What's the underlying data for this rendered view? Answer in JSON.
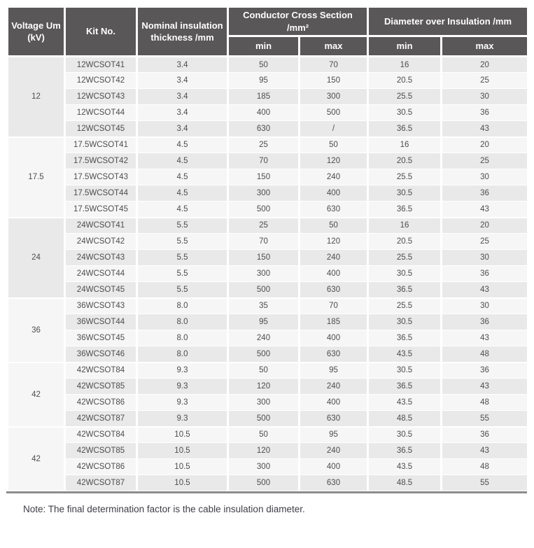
{
  "colors": {
    "header_bg": "#595757",
    "header_text": "#ffffff",
    "row_odd": "#e9e9ea",
    "row_even": "#f6f6f7",
    "voltage_cell_bg": "#ececed",
    "body_text": "#4e4d4d",
    "bottom_rule": "#8c8c8c",
    "note_text": "#3e3d46"
  },
  "table": {
    "headers": {
      "voltage": "Voltage Um (kV)",
      "kit_no": "Kit No.",
      "thickness": "Nominal insulation thickness /mm",
      "conductor_cross_section": "Conductor Cross Section /mm²",
      "diameter_over_insulation": "Diameter over Insulation /mm",
      "min": "min",
      "max": "max"
    },
    "groups": [
      {
        "voltage": "12",
        "rows": [
          {
            "kit_no": "12WCSOT41",
            "thickness": "3.4",
            "ccs_min": "50",
            "ccs_max": "70",
            "dia_min": "16",
            "dia_max": "20"
          },
          {
            "kit_no": "12WCSOT42",
            "thickness": "3.4",
            "ccs_min": "95",
            "ccs_max": "150",
            "dia_min": "20.5",
            "dia_max": "25"
          },
          {
            "kit_no": "12WCSOT43",
            "thickness": "3.4",
            "ccs_min": "185",
            "ccs_max": "300",
            "dia_min": "25.5",
            "dia_max": "30"
          },
          {
            "kit_no": "12WCSOT44",
            "thickness": "3.4",
            "ccs_min": "400",
            "ccs_max": "500",
            "dia_min": "30.5",
            "dia_max": "36"
          },
          {
            "kit_no": "12WCSOT45",
            "thickness": "3.4",
            "ccs_min": "630",
            "ccs_max": "/",
            "dia_min": "36.5",
            "dia_max": "43"
          }
        ]
      },
      {
        "voltage": "17.5",
        "rows": [
          {
            "kit_no": "17.5WCSOT41",
            "thickness": "4.5",
            "ccs_min": "25",
            "ccs_max": "50",
            "dia_min": "16",
            "dia_max": "20"
          },
          {
            "kit_no": "17.5WCSOT42",
            "thickness": "4.5",
            "ccs_min": "70",
            "ccs_max": "120",
            "dia_min": "20.5",
            "dia_max": "25"
          },
          {
            "kit_no": "17.5WCSOT43",
            "thickness": "4.5",
            "ccs_min": "150",
            "ccs_max": "240",
            "dia_min": "25.5",
            "dia_max": "30"
          },
          {
            "kit_no": "17.5WCSOT44",
            "thickness": "4.5",
            "ccs_min": "300",
            "ccs_max": "400",
            "dia_min": "30.5",
            "dia_max": "36"
          },
          {
            "kit_no": "17.5WCSOT45",
            "thickness": "4.5",
            "ccs_min": "500",
            "ccs_max": "630",
            "dia_min": "36.5",
            "dia_max": "43"
          }
        ]
      },
      {
        "voltage": "24",
        "rows": [
          {
            "kit_no": "24WCSOT41",
            "thickness": "5.5",
            "ccs_min": "25",
            "ccs_max": "50",
            "dia_min": "16",
            "dia_max": "20"
          },
          {
            "kit_no": "24WCSOT42",
            "thickness": "5.5",
            "ccs_min": "70",
            "ccs_max": "120",
            "dia_min": "20.5",
            "dia_max": "25"
          },
          {
            "kit_no": "24WCSOT43",
            "thickness": "5.5",
            "ccs_min": "150",
            "ccs_max": "240",
            "dia_min": "25.5",
            "dia_max": "30"
          },
          {
            "kit_no": "24WCSOT44",
            "thickness": "5.5",
            "ccs_min": "300",
            "ccs_max": "400",
            "dia_min": "30.5",
            "dia_max": "36"
          },
          {
            "kit_no": "24WCSOT45",
            "thickness": "5.5",
            "ccs_min": "500",
            "ccs_max": "630",
            "dia_min": "36.5",
            "dia_max": "43"
          }
        ]
      },
      {
        "voltage": "36",
        "rows": [
          {
            "kit_no": "36WCSOT43",
            "thickness": "8.0",
            "ccs_min": "35",
            "ccs_max": "70",
            "dia_min": "25.5",
            "dia_max": "30"
          },
          {
            "kit_no": "36WCSOT44",
            "thickness": "8.0",
            "ccs_min": "95",
            "ccs_max": "185",
            "dia_min": "30.5",
            "dia_max": "36"
          },
          {
            "kit_no": "36WCSOT45",
            "thickness": "8.0",
            "ccs_min": "240",
            "ccs_max": "400",
            "dia_min": "36.5",
            "dia_max": "43"
          },
          {
            "kit_no": "36WCSOT46",
            "thickness": "8.0",
            "ccs_min": "500",
            "ccs_max": "630",
            "dia_min": "43.5",
            "dia_max": "48"
          }
        ]
      },
      {
        "voltage": "42",
        "rows": [
          {
            "kit_no": "42WCSOT84",
            "thickness": "9.3",
            "ccs_min": "50",
            "ccs_max": "95",
            "dia_min": "30.5",
            "dia_max": "36"
          },
          {
            "kit_no": "42WCSOT85",
            "thickness": "9.3",
            "ccs_min": "120",
            "ccs_max": "240",
            "dia_min": "36.5",
            "dia_max": "43"
          },
          {
            "kit_no": "42WCSOT86",
            "thickness": "9.3",
            "ccs_min": "300",
            "ccs_max": "400",
            "dia_min": "43.5",
            "dia_max": "48"
          },
          {
            "kit_no": "42WCSOT87",
            "thickness": "9.3",
            "ccs_min": "500",
            "ccs_max": "630",
            "dia_min": "48.5",
            "dia_max": "55"
          }
        ]
      },
      {
        "voltage": "42",
        "rows": [
          {
            "kit_no": "42WCSOT84",
            "thickness": "10.5",
            "ccs_min": "50",
            "ccs_max": "95",
            "dia_min": "30.5",
            "dia_max": "36"
          },
          {
            "kit_no": "42WCSOT85",
            "thickness": "10.5",
            "ccs_min": "120",
            "ccs_max": "240",
            "dia_min": "36.5",
            "dia_max": "43"
          },
          {
            "kit_no": "42WCSOT86",
            "thickness": "10.5",
            "ccs_min": "300",
            "ccs_max": "400",
            "dia_min": "43.5",
            "dia_max": "48"
          },
          {
            "kit_no": "42WCSOT87",
            "thickness": "10.5",
            "ccs_min": "500",
            "ccs_max": "630",
            "dia_min": "48.5",
            "dia_max": "55"
          }
        ]
      }
    ],
    "note": "Note: The final determination factor is the cable insulation diameter."
  }
}
